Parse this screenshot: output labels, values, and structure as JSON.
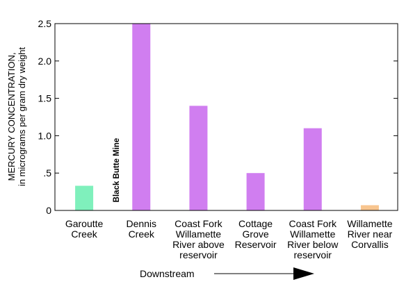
{
  "chart_data": {
    "type": "bar",
    "ylabel_line1": "MERCURY CONCENTRATION,",
    "ylabel_line2": "in micrograms per gram dry weight",
    "ylim": [
      0,
      2.5
    ],
    "yticks": [
      {
        "value": 0,
        "label": "0"
      },
      {
        "value": 0.5,
        "label": ".5"
      },
      {
        "value": 1.0,
        "label": "1.0"
      },
      {
        "value": 1.5,
        "label": "1.5"
      },
      {
        "value": 2.0,
        "label": "2.0"
      },
      {
        "value": 2.5,
        "label": "2.5"
      }
    ],
    "categories": [
      {
        "lines": [
          "Garoutte",
          "Creek"
        ],
        "value": 0.33,
        "color": "#7ff0bc"
      },
      {
        "lines": [
          "Dennis",
          "Creek"
        ],
        "value": 2.5,
        "color": "#d07ef0"
      },
      {
        "lines": [
          "Coast Fork",
          "Willamette",
          "River above",
          "reservoir"
        ],
        "value": 1.4,
        "color": "#d07ef0"
      },
      {
        "lines": [
          "Cottage",
          "Grove",
          "Reservoir"
        ],
        "value": 0.5,
        "color": "#d07ef0"
      },
      {
        "lines": [
          "Coast Fork",
          "Willamette",
          "River below",
          "reservoir"
        ],
        "value": 1.1,
        "color": "#d07ef0"
      },
      {
        "lines": [
          "Willamette",
          "River near",
          "Corvallis"
        ],
        "value": 0.07,
        "color": "#f8c58f"
      }
    ],
    "annotation": "Black Butte Mine",
    "direction_label": "Downstream",
    "grid": false
  }
}
